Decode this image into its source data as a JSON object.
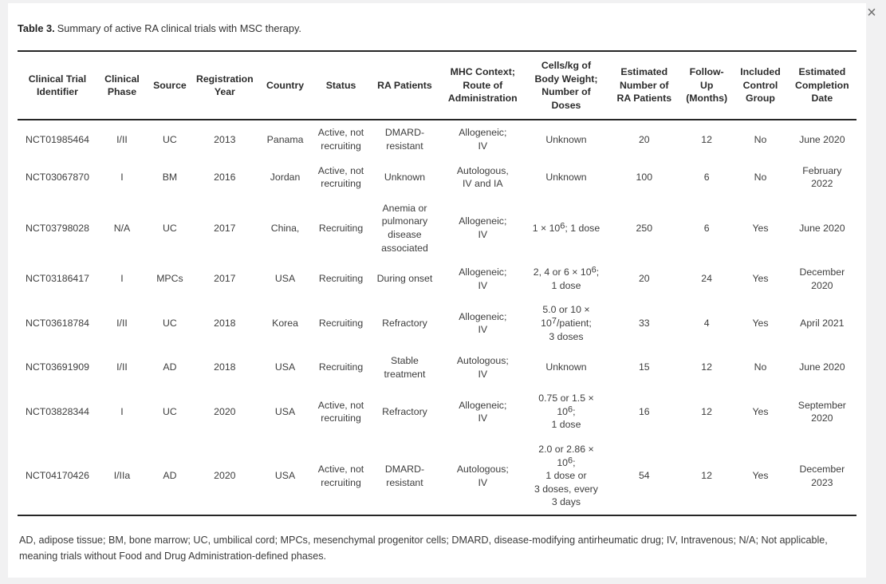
{
  "dialog": {
    "close_icon": "×"
  },
  "caption": {
    "label": "Table 3.",
    "text": "Summary of active RA clinical trials with MSC therapy."
  },
  "table": {
    "headers": [
      "Clinical Trial\nIdentifier",
      "Clinical\nPhase",
      "Source",
      "Registration\nYear",
      "Country",
      "Status",
      "RA Patients",
      "MHC Context;\nRoute of\nAdministration",
      "Cells/kg of\nBody Weight;\nNumber of\nDoses",
      "Estimated\nNumber of\nRA Patients",
      "Follow-\nUp\n(Months)",
      "Included\nControl\nGroup",
      "Estimated\nCompletion\nDate"
    ],
    "rows": [
      [
        "NCT01985464",
        "I/II",
        "UC",
        "2013",
        "Panama",
        "Active, not\nrecruiting",
        "DMARD-\nresistant",
        "Allogeneic;\nIV",
        "Unknown",
        "20",
        "12",
        "No",
        "June 2020"
      ],
      [
        "NCT03067870",
        "I",
        "BM",
        "2016",
        "Jordan",
        "Active, not\nrecruiting",
        "Unknown",
        "Autologous,\nIV and IA",
        "Unknown",
        "100",
        "6",
        "No",
        "February\n2022"
      ],
      [
        "NCT03798028",
        "N/A",
        "UC",
        "2017",
        "China,",
        "Recruiting",
        "Anemia or\npulmonary\ndisease\nassociated",
        "Allogeneic;\nIV",
        "1 × 10^6; 1 dose",
        "250",
        "6",
        "Yes",
        "June 2020"
      ],
      [
        "NCT03186417",
        "I",
        "MPCs",
        "2017",
        "USA",
        "Recruiting",
        "During onset",
        "Allogeneic;\nIV",
        "2, 4 or 6 × 10^6;\n1 dose",
        "20",
        "24",
        "Yes",
        "December\n2020"
      ],
      [
        "NCT03618784",
        "I/II",
        "UC",
        "2018",
        "Korea",
        "Recruiting",
        "Refractory",
        "Allogeneic;\nIV",
        "5.0 or 10 ×\n10^7/patient;\n3 doses",
        "33",
        "4",
        "Yes",
        "April 2021"
      ],
      [
        "NCT03691909",
        "I/II",
        "AD",
        "2018",
        "USA",
        "Recruiting",
        "Stable\ntreatment",
        "Autologous;\nIV",
        "Unknown",
        "15",
        "12",
        "No",
        "June 2020"
      ],
      [
        "NCT03828344",
        "I",
        "UC",
        "2020",
        "USA",
        "Active, not\nrecruiting",
        "Refractory",
        "Allogeneic;\nIV",
        "0.75 or 1.5 ×\n10^6;\n1 dose",
        "16",
        "12",
        "Yes",
        "September\n2020"
      ],
      [
        "NCT04170426",
        "I/IIa",
        "AD",
        "2020",
        "USA",
        "Active, not\nrecruiting",
        "DMARD-\nresistant",
        "Autologous;\nIV",
        "2.0 or 2.86 ×\n10^6;\n1 dose or\n3 doses, every\n3 days",
        "54",
        "12",
        "Yes",
        "December\n2023"
      ]
    ],
    "column_widths_pct": [
      9.5,
      5.9,
      5.5,
      7.6,
      6.8,
      6.5,
      8.7,
      9.9,
      10.0,
      8.6,
      6.3,
      6.5,
      8.2
    ]
  },
  "footnote": "AD, adipose tissue; BM, bone marrow; UC, umbilical cord; MPCs, mesenchymal progenitor cells; DMARD, disease-modifying antirheumatic drug; IV, Intravenous; N/A; Not applicable, meaning trials without Food and Drug Administration-defined phases.",
  "colors": {
    "page_background": "#f1f1f2",
    "panel_background": "#ffffff",
    "rule": "#262626",
    "text": "#3a3a3a",
    "close_icon": "#6e6e6e"
  }
}
